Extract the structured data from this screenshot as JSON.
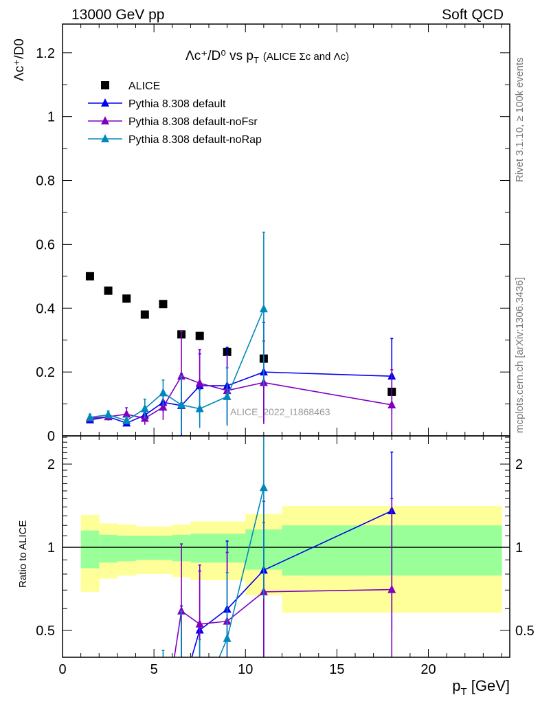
{
  "header": {
    "left": "13000 GeV pp",
    "right": "Soft QCD"
  },
  "side_text": {
    "rivet": "Rivet 3.1.10, ≥ 100k events",
    "mcplots": "mcplots.cern.ch [arXiv:1306.3436]"
  },
  "watermark": "ALICE_2022_I1868463",
  "colors": {
    "alice": "#000000",
    "default": "#0000ee",
    "noFsr": "#8000c0",
    "noRap": "#0088bb",
    "band_outer": "#ffff99",
    "band_inner": "#99ff99"
  },
  "chart_data": [
    {
      "type": "scatter",
      "title": "Λc⁺/D⁰ vs pT (ALICE Σc and Λc)",
      "title_main": "Λc⁺/D⁰ vs p",
      "title_sub_T": "T",
      "title_extra": "(ALICE Σc and Λc)",
      "ylabel": "Λc⁺/D0",
      "ylim": [
        0,
        1.29
      ],
      "xlim": [
        0,
        24.45
      ],
      "yticks": [
        0,
        0.2,
        0.4,
        0.6,
        0.8,
        1,
        1.2
      ],
      "ytick_labels": [
        "0",
        "0.2",
        "0.4",
        "0.6",
        "0.8",
        "1",
        "1.2"
      ],
      "legend_position": "top-left",
      "x": [
        1.5,
        2.5,
        3.5,
        4.5,
        5.5,
        6.5,
        7.5,
        9,
        11,
        18
      ],
      "bins": [
        [
          1,
          2
        ],
        [
          2,
          3
        ],
        [
          3,
          4
        ],
        [
          4,
          5
        ],
        [
          5,
          6
        ],
        [
          6,
          7
        ],
        [
          7,
          8
        ],
        [
          8,
          10
        ],
        [
          10,
          12
        ],
        [
          12,
          24
        ]
      ],
      "series": [
        {
          "key": "alice",
          "name": "ALICE",
          "marker": "square",
          "values": [
            0.5,
            0.455,
            0.43,
            0.38,
            0.413,
            0.318,
            0.313,
            0.263,
            0.242,
            0.138
          ]
        },
        {
          "key": "default",
          "name": "Pythia 8.308 default",
          "marker": "triangle",
          "values": [
            0.05,
            0.06,
            0.04,
            0.065,
            0.105,
            0.095,
            0.157,
            0.157,
            0.2,
            0.187
          ],
          "errors": [
            0.008,
            0.01,
            0.01,
            0.02,
            0.03,
            0.1,
            0.1,
            0.12,
            0.155,
            0.118
          ]
        },
        {
          "key": "noFsr",
          "name": "Pythia 8.308 default-noFsr",
          "marker": "triangle",
          "values": [
            0.055,
            0.06,
            0.068,
            0.055,
            0.09,
            0.187,
            0.165,
            0.142,
            0.167,
            0.097
          ],
          "errors": [
            0.008,
            0.012,
            0.02,
            0.02,
            0.04,
            0.14,
            0.105,
            0.11,
            0.13,
            0.11
          ]
        },
        {
          "key": "noRap",
          "name": "Pythia 8.308 default-noRap",
          "marker": "triangle",
          "values": [
            0.058,
            0.066,
            0.048,
            0.085,
            0.135,
            0.097,
            0.085,
            0.123,
            0.398,
            null
          ],
          "errors": [
            0.01,
            0.012,
            0.012,
            0.03,
            0.04,
            0.09,
            0.06,
            0.09,
            0.24,
            null
          ]
        }
      ]
    },
    {
      "type": "line",
      "ylabel": "Ratio to ALICE",
      "xlabel": "pT [GeV]",
      "xlabel_main": "p",
      "xlabel_sub": "T",
      "xlabel_unit": "[GeV]",
      "yscale": "log",
      "ylim": [
        0.4,
        2.53
      ],
      "xlim": [
        0,
        24.45
      ],
      "xticks": [
        0,
        5,
        10,
        15,
        20
      ],
      "xtick_labels": [
        "0",
        "5",
        "10",
        "15",
        "20"
      ],
      "yticks": [
        0.5,
        1,
        2
      ],
      "ytick_labels": [
        "0.5",
        "1",
        "2"
      ],
      "band_outer": [
        [
          0.69,
          1.31
        ],
        [
          0.77,
          1.22
        ],
        [
          0.79,
          1.21
        ],
        [
          0.8,
          1.19
        ],
        [
          0.8,
          1.19
        ],
        [
          0.78,
          1.21
        ],
        [
          0.76,
          1.24
        ],
        [
          0.76,
          1.24
        ],
        [
          0.67,
          1.32
        ],
        [
          0.58,
          1.41
        ]
      ],
      "band_inner": [
        [
          0.84,
          1.15
        ],
        [
          0.88,
          1.11
        ],
        [
          0.89,
          1.1
        ],
        [
          0.9,
          1.1
        ],
        [
          0.9,
          1.1
        ],
        [
          0.89,
          1.11
        ],
        [
          0.88,
          1.12
        ],
        [
          0.88,
          1.12
        ],
        [
          0.83,
          1.16
        ],
        [
          0.79,
          1.2
        ]
      ]
    }
  ]
}
